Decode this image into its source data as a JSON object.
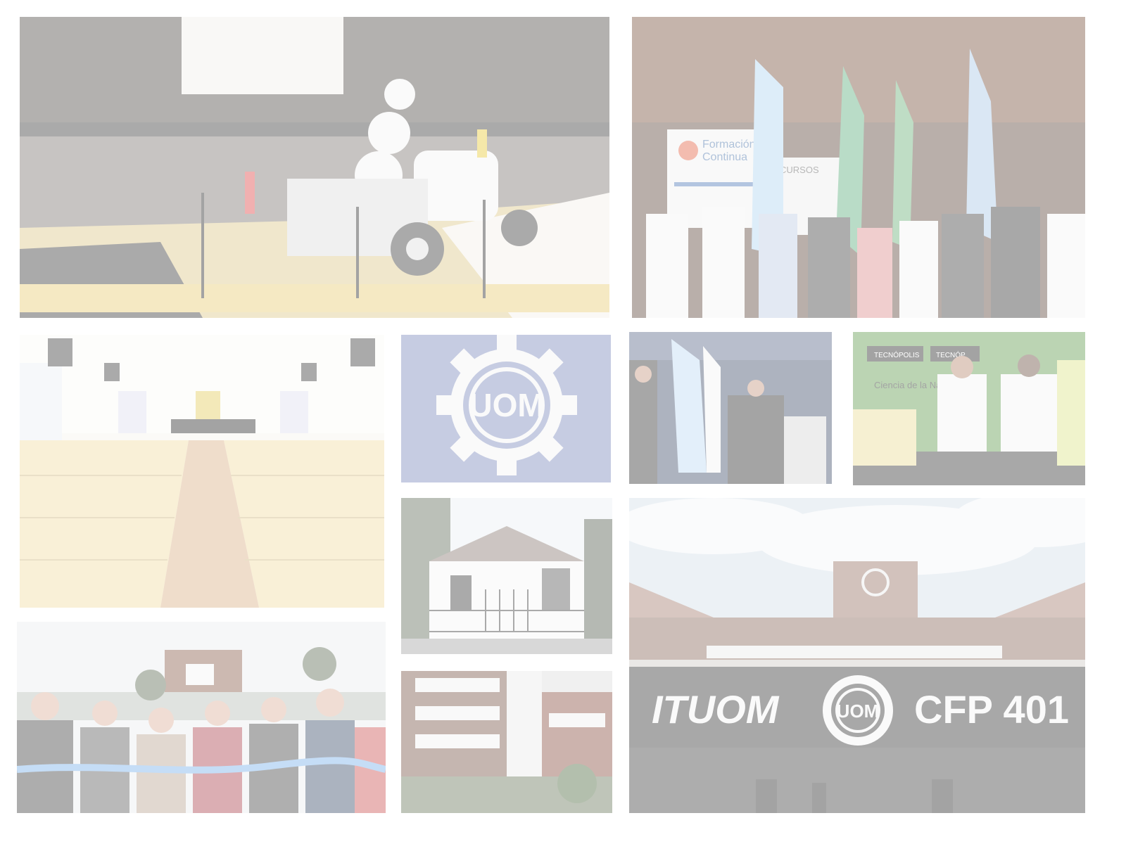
{
  "collage": {
    "opacity": 0.38,
    "palette": {
      "page_background": "#ffffff",
      "uom_blue": "#7585b8",
      "flag_blue": "#9ec6ea",
      "wood_yellow": "#e9c46a",
      "facade_brown": "#8a6656",
      "sky": "#d8e2ee"
    },
    "tiles": [
      {
        "id": "robot",
        "subject": "lego-robot-competition"
      },
      {
        "id": "flags",
        "subject": "graduation-ceremony-with-flags"
      },
      {
        "id": "auditorium",
        "subject": "auditorium-with-yellow-chairs"
      },
      {
        "id": "logo",
        "subject": "uom-gear-logo"
      },
      {
        "id": "ceremony",
        "subject": "indoor-flag-ceremony"
      },
      {
        "id": "students",
        "subject": "students-at-robotics-expo"
      },
      {
        "id": "house",
        "subject": "white-house-facade"
      },
      {
        "id": "ribbon",
        "subject": "ribbon-cutting-inauguration"
      },
      {
        "id": "building",
        "subject": "multi-storey-building-courtyard"
      },
      {
        "id": "sign",
        "subject": "institute-building-sign"
      }
    ]
  },
  "logo_tile": {
    "monogram": "UOM"
  },
  "posters": {
    "flags_banner_line1": "Formación",
    "flags_banner_line2": "Continua",
    "flags_poster": "CURSOS",
    "students_banner_1": "TECNÓPOLIS",
    "students_banner_2": "TECNÓP",
    "students_banner_sub": "Ciencia de la Nación"
  },
  "sign": {
    "left_text": "ITUOM",
    "right_text": "CFP 401",
    "logo_monogram": "UOM"
  }
}
